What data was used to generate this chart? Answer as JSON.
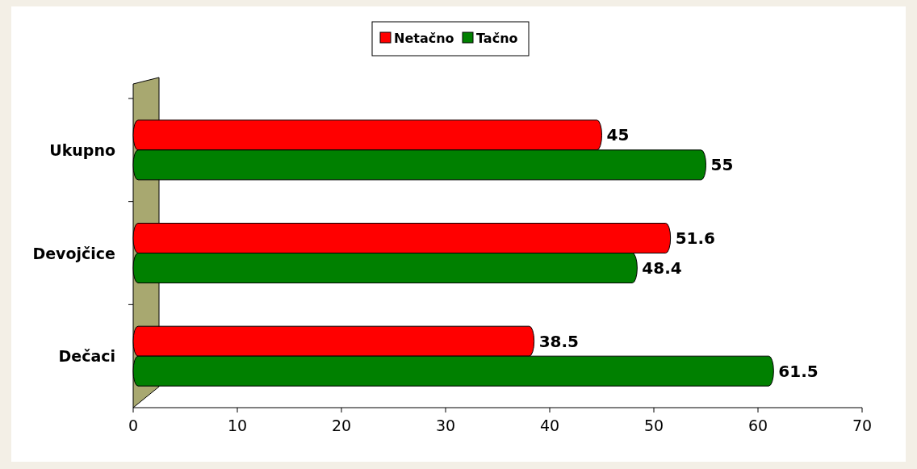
{
  "chart_data": {
    "type": "bar",
    "orientation": "horizontal",
    "categories": [
      "Ukupno",
      "Devojčice",
      "Dečaci"
    ],
    "series": [
      {
        "name": "Netačno",
        "color": "#ff0000",
        "values": [
          45,
          51.6,
          38.5
        ]
      },
      {
        "name": "Tačno",
        "color": "#008000",
        "values": [
          55,
          48.4,
          61.5
        ]
      }
    ],
    "xlim": [
      0,
      70
    ],
    "xticks": [
      0,
      10,
      20,
      30,
      40,
      50,
      60,
      70
    ],
    "data_labels": true,
    "legend": "top",
    "grid": false
  }
}
